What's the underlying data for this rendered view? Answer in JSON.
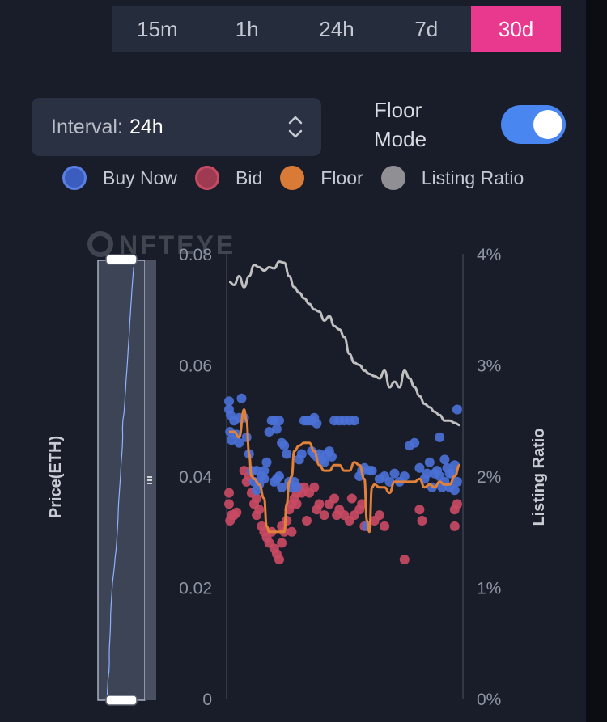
{
  "timeframes": {
    "items": [
      "15m",
      "1h",
      "24h",
      "7d",
      "30d"
    ],
    "active": 4,
    "active_color": "#e8398f"
  },
  "interval": {
    "label": "Interval:",
    "value": "24h"
  },
  "floor_mode": {
    "line1": "Floor",
    "line2": "Mode",
    "on": true,
    "color": "#4a86f0"
  },
  "watermark": "NFTEYE",
  "chart_data": {
    "type": "scatter",
    "title": "",
    "ylabel": "Price(ETH)",
    "y2label": "Listing Ratio",
    "ylim": [
      0,
      0.08
    ],
    "y2lim": [
      0,
      4
    ],
    "yticks": [
      "0",
      "0.02",
      "0.04",
      "0.06",
      "0.08"
    ],
    "y2ticks": [
      "0%",
      "1%",
      "2%",
      "3%",
      "4%"
    ],
    "legend_position": "top",
    "series": [
      {
        "name": "Buy Now",
        "kind": "points",
        "color": "#4b70d6",
        "points": [
          [
            0,
            0.0535
          ],
          [
            0,
            0.052
          ],
          [
            0.3,
            0.051
          ],
          [
            0.2,
            0.048
          ],
          [
            0.5,
            0.0465
          ],
          [
            1.0,
            0.05
          ],
          [
            1.5,
            0.0475
          ],
          [
            2.0,
            0.046
          ],
          [
            2.0,
            0.0505
          ],
          [
            2.5,
            0.054
          ],
          [
            3.0,
            0.0505
          ],
          [
            3.5,
            0.047
          ],
          [
            4.0,
            0.044
          ],
          [
            4.5,
            0.041
          ],
          [
            5.0,
            0.039
          ],
          [
            5.5,
            0.0375
          ],
          [
            5.5,
            0.041
          ],
          [
            6.0,
            0.0385
          ],
          [
            6.5,
            0.04
          ],
          [
            7.0,
            0.041
          ],
          [
            7.5,
            0.0425
          ],
          [
            7.0,
            0.0395
          ],
          [
            8.0,
            0.048
          ],
          [
            8.5,
            0.05
          ],
          [
            9.0,
            0.05
          ],
          [
            9.5,
            0.0485
          ],
          [
            10.0,
            0.05
          ],
          [
            9.0,
            0.039
          ],
          [
            9.5,
            0.0395
          ],
          [
            10.0,
            0.04
          ],
          [
            10.5,
            0.038
          ],
          [
            10.5,
            0.046
          ],
          [
            11.0,
            0.0455
          ],
          [
            11.5,
            0.044
          ],
          [
            12.0,
            0.039
          ],
          [
            12.5,
            0.038
          ],
          [
            13.0,
            0.039
          ],
          [
            13.5,
            0.038
          ],
          [
            14.0,
            0.043
          ],
          [
            14.5,
            0.044
          ],
          [
            15.0,
            0.05
          ],
          [
            15.5,
            0.05
          ],
          [
            16.0,
            0.05
          ],
          [
            16.5,
            0.05
          ],
          [
            17.0,
            0.0505
          ],
          [
            17.5,
            0.0495
          ],
          [
            16.5,
            0.0445
          ],
          [
            17.0,
            0.044
          ],
          [
            17.5,
            0.0435
          ],
          [
            18.0,
            0.044
          ],
          [
            18.5,
            0.043
          ],
          [
            19.0,
            0.0425
          ],
          [
            19.5,
            0.044
          ],
          [
            20.0,
            0.0445
          ],
          [
            20.5,
            0.0435
          ],
          [
            21.0,
            0.05
          ],
          [
            22.0,
            0.05
          ],
          [
            23.0,
            0.05
          ],
          [
            24.0,
            0.05
          ],
          [
            25.0,
            0.05
          ],
          [
            26.0,
            0.04
          ],
          [
            26.5,
            0.041
          ],
          [
            27.0,
            0.0415
          ],
          [
            28.0,
            0.041
          ],
          [
            28.5,
            0.041
          ],
          [
            27.5,
            0.031
          ],
          [
            30.0,
            0.0395
          ],
          [
            31.0,
            0.04
          ],
          [
            32.0,
            0.039
          ],
          [
            33.0,
            0.0405
          ],
          [
            34.0,
            0.039
          ],
          [
            35.0,
            0.04
          ],
          [
            36.0,
            0.0455
          ],
          [
            37.0,
            0.046
          ],
          [
            38.0,
            0.0415
          ],
          [
            39.0,
            0.0395
          ],
          [
            39.5,
            0.0405
          ],
          [
            40.0,
            0.0425
          ],
          [
            41.0,
            0.0405
          ],
          [
            42.0,
            0.04
          ],
          [
            43.0,
            0.043
          ],
          [
            44.0,
            0.0405
          ],
          [
            43.0,
            0.039
          ],
          [
            44.0,
            0.038
          ],
          [
            44.5,
            0.0405
          ],
          [
            45.0,
            0.042
          ],
          [
            45.5,
            0.039
          ],
          [
            45.0,
            0.0375
          ],
          [
            42.5,
            0.038
          ],
          [
            40.5,
            0.038
          ],
          [
            42.0,
            0.047
          ],
          [
            41.5,
            0.041
          ],
          [
            43.5,
            0.0415
          ],
          [
            45.5,
            0.052
          ]
        ]
      },
      {
        "name": "Bid",
        "kind": "points",
        "color": "#c84a63",
        "points": [
          [
            0,
            0.037
          ],
          [
            0,
            0.035
          ],
          [
            0.5,
            0.033
          ],
          [
            0.2,
            0.032
          ],
          [
            1.0,
            0.033
          ],
          [
            1.5,
            0.0335
          ],
          [
            3.0,
            0.041
          ],
          [
            3.5,
            0.039
          ],
          [
            4.0,
            0.04
          ],
          [
            4.5,
            0.037
          ],
          [
            5.0,
            0.035
          ],
          [
            5.5,
            0.036
          ],
          [
            5.5,
            0.033
          ],
          [
            6.0,
            0.034
          ],
          [
            6.5,
            0.031
          ],
          [
            7.0,
            0.03
          ],
          [
            7.5,
            0.029
          ],
          [
            8.0,
            0.028
          ],
          [
            8.5,
            0.03
          ],
          [
            9.0,
            0.027
          ],
          [
            9.5,
            0.026
          ],
          [
            10.0,
            0.025
          ],
          [
            10.5,
            0.028
          ],
          [
            11.0,
            0.03
          ],
          [
            11.5,
            0.032
          ],
          [
            12.0,
            0.034
          ],
          [
            12.5,
            0.035
          ],
          [
            13.0,
            0.036
          ],
          [
            13.5,
            0.037
          ],
          [
            14.0,
            0.038
          ],
          [
            14.5,
            0.037
          ],
          [
            15.0,
            0.038
          ],
          [
            16.0,
            0.037
          ],
          [
            17.0,
            0.038
          ],
          [
            18.0,
            0.035
          ],
          [
            19.0,
            0.033
          ],
          [
            20.0,
            0.035
          ],
          [
            21.0,
            0.036
          ],
          [
            22.0,
            0.034
          ],
          [
            23.0,
            0.033
          ],
          [
            24.0,
            0.032
          ],
          [
            25.0,
            0.033
          ],
          [
            26.0,
            0.034
          ],
          [
            27.0,
            0.031
          ],
          [
            29.0,
            0.032
          ],
          [
            30.0,
            0.033
          ],
          [
            31.0,
            0.031
          ],
          [
            35.0,
            0.025
          ],
          [
            38.0,
            0.034
          ],
          [
            38.5,
            0.032
          ],
          [
            45.0,
            0.034
          ],
          [
            45.5,
            0.035
          ],
          [
            45.0,
            0.031
          ],
          [
            10.5,
            0.031
          ],
          [
            12.5,
            0.03
          ],
          [
            15.5,
            0.032
          ],
          [
            17.5,
            0.034
          ],
          [
            21.5,
            0.033
          ],
          [
            24.5,
            0.036
          ],
          [
            26.5,
            0.035
          ],
          [
            13.5,
            0.035
          ]
        ]
      },
      {
        "name": "Floor",
        "kind": "line",
        "color": "#e2823a",
        "points": [
          [
            0,
            0.048
          ],
          [
            1,
            0.048
          ],
          [
            2,
            0.047
          ],
          [
            3,
            0.052
          ],
          [
            3.5,
            0.05
          ],
          [
            4,
            0.044
          ],
          [
            4.5,
            0.04
          ],
          [
            5,
            0.0395
          ],
          [
            6,
            0.0385
          ],
          [
            7,
            0.036
          ],
          [
            7.5,
            0.031
          ],
          [
            8,
            0.03
          ],
          [
            9,
            0.03
          ],
          [
            10,
            0.03
          ],
          [
            11,
            0.03
          ],
          [
            11.5,
            0.035
          ],
          [
            12,
            0.039
          ],
          [
            12.5,
            0.04
          ],
          [
            13,
            0.0445
          ],
          [
            14,
            0.0455
          ],
          [
            15,
            0.046
          ],
          [
            16,
            0.046
          ],
          [
            17,
            0.0445
          ],
          [
            18,
            0.042
          ],
          [
            19,
            0.041
          ],
          [
            20,
            0.041
          ],
          [
            21,
            0.042
          ],
          [
            22,
            0.042
          ],
          [
            23,
            0.041
          ],
          [
            24,
            0.041
          ],
          [
            25,
            0.0425
          ],
          [
            26,
            0.042
          ],
          [
            27,
            0.0395
          ],
          [
            27.5,
            0.032
          ],
          [
            28,
            0.03
          ],
          [
            28.5,
            0.038
          ],
          [
            29,
            0.0385
          ],
          [
            30,
            0.038
          ],
          [
            31,
            0.038
          ],
          [
            32,
            0.037
          ],
          [
            33,
            0.039
          ],
          [
            34,
            0.039
          ],
          [
            35,
            0.039
          ],
          [
            36,
            0.039
          ],
          [
            37,
            0.039
          ],
          [
            38,
            0.0395
          ],
          [
            39,
            0.038
          ],
          [
            40,
            0.0385
          ],
          [
            41,
            0.038
          ],
          [
            42,
            0.039
          ],
          [
            43,
            0.0385
          ],
          [
            44,
            0.0385
          ],
          [
            45,
            0.04
          ],
          [
            46,
            0.042
          ]
        ]
      },
      {
        "name": "Listing Ratio",
        "kind": "line",
        "axis": "right",
        "color": "#c0c0c0",
        "points": [
          [
            0,
            3.75
          ],
          [
            1,
            3.72
          ],
          [
            2,
            3.8
          ],
          [
            3,
            3.7
          ],
          [
            4,
            3.8
          ],
          [
            5,
            3.9
          ],
          [
            6,
            3.88
          ],
          [
            7,
            3.85
          ],
          [
            8,
            3.88
          ],
          [
            9,
            3.87
          ],
          [
            10,
            3.93
          ],
          [
            11,
            3.92
          ],
          [
            12,
            3.8
          ],
          [
            13,
            3.7
          ],
          [
            14,
            3.65
          ],
          [
            15,
            3.6
          ],
          [
            16,
            3.55
          ],
          [
            17,
            3.5
          ],
          [
            18,
            3.48
          ],
          [
            19,
            3.4
          ],
          [
            20,
            3.44
          ],
          [
            21,
            3.35
          ],
          [
            22,
            3.32
          ],
          [
            23,
            3.25
          ],
          [
            24,
            3.1
          ],
          [
            25,
            3.02
          ],
          [
            26,
            3.0
          ],
          [
            27,
            2.95
          ],
          [
            28,
            2.92
          ],
          [
            29,
            2.9
          ],
          [
            30,
            2.88
          ],
          [
            31,
            2.95
          ],
          [
            32,
            2.8
          ],
          [
            33,
            2.85
          ],
          [
            34,
            2.8
          ],
          [
            35,
            2.95
          ],
          [
            36,
            2.88
          ],
          [
            37,
            2.8
          ],
          [
            38,
            2.72
          ],
          [
            39,
            2.65
          ],
          [
            40,
            2.62
          ],
          [
            41,
            2.58
          ],
          [
            42,
            2.55
          ],
          [
            43,
            2.5
          ],
          [
            44,
            2.5
          ],
          [
            45,
            2.48
          ],
          [
            46,
            2.46
          ]
        ]
      }
    ],
    "xlim": [
      0,
      46
    ]
  }
}
